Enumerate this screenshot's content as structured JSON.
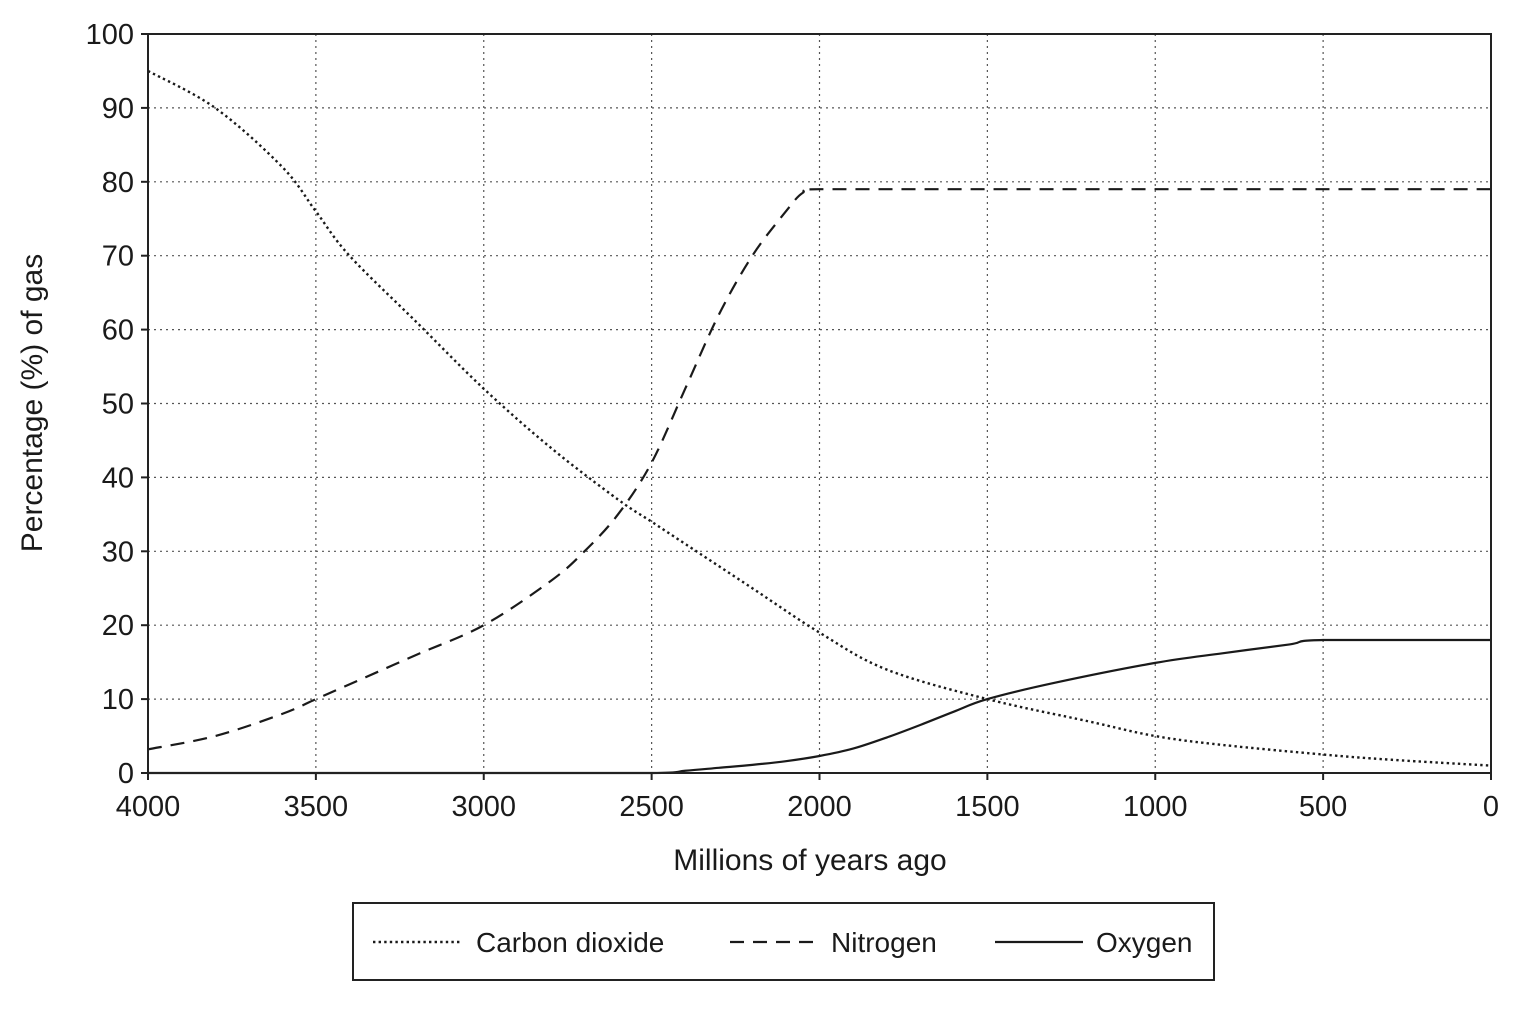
{
  "chart_data": {
    "type": "line",
    "title": "",
    "xlabel": "Millions of years ago",
    "ylabel": "Percentage (%) of gas",
    "xlim": [
      4000,
      0
    ],
    "ylim": [
      0,
      100
    ],
    "x_reversed": true,
    "grid": true,
    "legend_position": "bottom",
    "x_ticks": [
      "4000",
      "3500",
      "3000",
      "2500",
      "2000",
      "1500",
      "1000",
      "500",
      "0"
    ],
    "y_ticks": [
      "0",
      "10",
      "20",
      "30",
      "40",
      "50",
      "60",
      "70",
      "80",
      "90",
      "100"
    ],
    "series": [
      {
        "name": "Carbon dioxide",
        "line_style": "dotted",
        "x": [
          4000,
          3800,
          3600,
          3500,
          3400,
          3200,
          3000,
          2800,
          2600,
          2500,
          2400,
          2200,
          2000,
          1800,
          1500,
          1200,
          1000,
          800,
          500,
          300,
          0
        ],
        "y": [
          95,
          90,
          82,
          76,
          70,
          61,
          52,
          44,
          37,
          34,
          31,
          25,
          19,
          14,
          10,
          7,
          5,
          3.8,
          2.5,
          1.8,
          1
        ]
      },
      {
        "name": "Nitrogen",
        "line_style": "dashed",
        "x": [
          4000,
          3800,
          3600,
          3500,
          3400,
          3200,
          3000,
          2800,
          2700,
          2600,
          2500,
          2400,
          2300,
          2200,
          2100,
          2050,
          2000,
          1500,
          1000,
          500,
          0
        ],
        "y": [
          3.2,
          5,
          8,
          10,
          12,
          16,
          20,
          26,
          30,
          35,
          42,
          52,
          62,
          70,
          76,
          78.5,
          79,
          79,
          79,
          79,
          79
        ]
      },
      {
        "name": "Oxygen",
        "line_style": "solid",
        "x": [
          4000,
          3500,
          3000,
          2500,
          2400,
          2300,
          2200,
          2100,
          2000,
          1900,
          1800,
          1700,
          1600,
          1500,
          1300,
          1000,
          800,
          600,
          500,
          0
        ],
        "y": [
          0,
          0,
          0,
          0,
          0.3,
          0.7,
          1.1,
          1.6,
          2.3,
          3.3,
          4.8,
          6.5,
          8.3,
          10,
          12.2,
          14.9,
          16.2,
          17.4,
          18,
          18
        ]
      }
    ]
  }
}
